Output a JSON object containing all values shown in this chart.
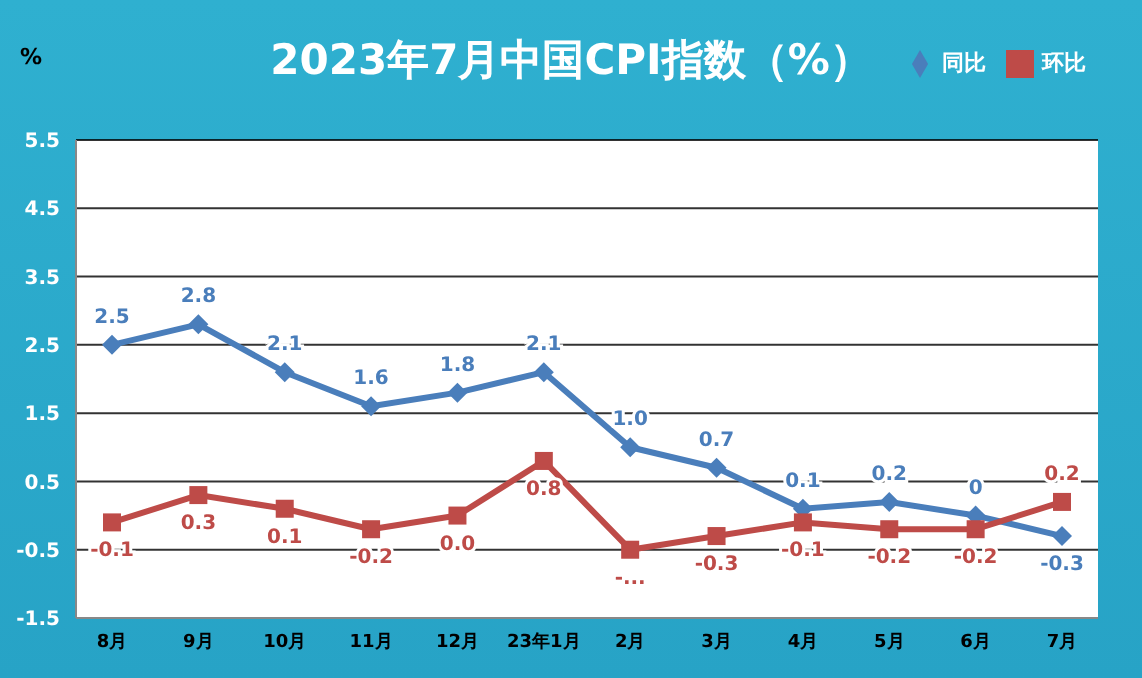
{
  "chart_data": {
    "type": "line",
    "title": "2023年7月中国CPI指数（%）",
    "ylabel": "%",
    "categories": [
      "8月",
      "9月",
      "10月",
      "11月",
      "12月",
      "23年1月",
      "2月",
      "3月",
      "4月",
      "5月",
      "6月",
      "7月"
    ],
    "series": [
      {
        "name": "同比",
        "color": "#4a7ebb",
        "marker": "diamond",
        "values": [
          2.5,
          2.8,
          2.1,
          1.6,
          1.8,
          2.1,
          1.0,
          0.7,
          0.1,
          0.2,
          0,
          -0.3
        ],
        "value_labels": [
          "2.5",
          "2.8",
          "2.1",
          "1.6",
          "1.8",
          "2.1",
          "1.0",
          "0.7",
          "0.1",
          "0.2",
          "0",
          "-0.3"
        ]
      },
      {
        "name": "环比",
        "color": "#be4b48",
        "marker": "square",
        "values": [
          -0.1,
          0.3,
          0.1,
          -0.2,
          0,
          0.8,
          -0.5,
          -0.3,
          -0.1,
          -0.2,
          -0.2,
          0.2
        ],
        "value_labels": [
          "-0.1",
          "0.3",
          "0.1",
          "-0.2",
          "0.0",
          "0.8",
          "-...",
          "-0.3",
          "-0.1",
          "-0.2",
          "-0.2",
          "0.2"
        ]
      }
    ],
    "ylim": [
      -1.5,
      5.5
    ],
    "yticks": [
      -1.5,
      -0.5,
      0.5,
      1.5,
      2.5,
      3.5,
      4.5,
      5.5
    ],
    "grid": "y",
    "legend": "top right",
    "line_style": "solid"
  }
}
